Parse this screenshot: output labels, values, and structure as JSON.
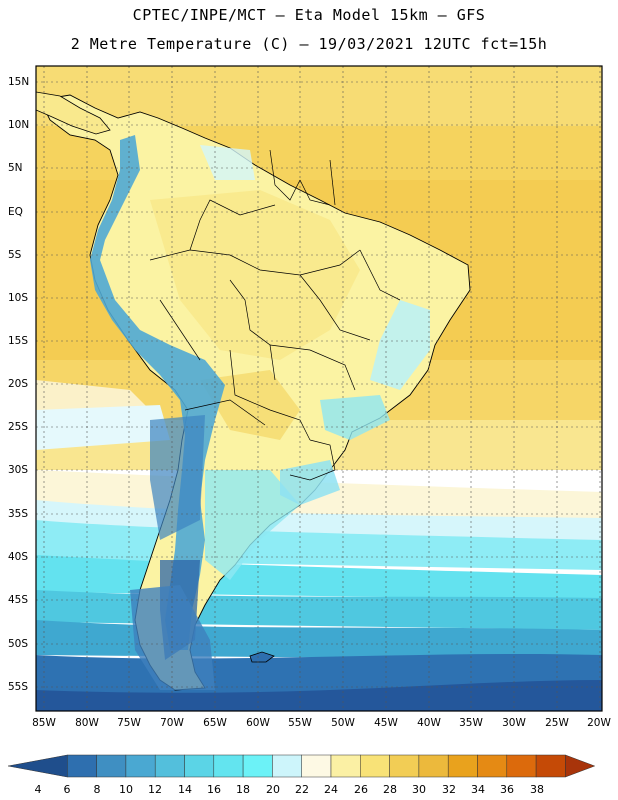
{
  "header": {
    "line1": "CPTEC/INPE/MCT –  Eta Model 15km – GFS",
    "line2": "2 Metre Temperature (C) – 19/03/2021 12UTC fct=15h"
  },
  "map": {
    "region": "South America",
    "lat_labels": [
      "15N",
      "10N",
      "5N",
      "EQ",
      "5S",
      "10S",
      "15S",
      "20S",
      "25S",
      "30S",
      "35S",
      "40S",
      "45S",
      "50S",
      "55S"
    ],
    "lon_labels": [
      "85W",
      "80W",
      "75W",
      "70W",
      "65W",
      "60W",
      "55W",
      "50W",
      "45W",
      "40W",
      "35W",
      "30W",
      "25W",
      "20W"
    ],
    "lat_range": [
      -58,
      17
    ],
    "lon_range": [
      -86,
      -20
    ],
    "grid": true
  },
  "colorbar": {
    "labels": [
      "4",
      "6",
      "8",
      "10",
      "12",
      "14",
      "16",
      "18",
      "20",
      "22",
      "24",
      "26",
      "28",
      "30",
      "32",
      "34",
      "36",
      "38"
    ],
    "colors": [
      "#1f4e8c",
      "#2e6faf",
      "#3f8fc2",
      "#4aa8d2",
      "#53bfdc",
      "#5bd4e6",
      "#63e4ef",
      "#6cf2f7",
      "#cdf5fb",
      "#fdf9e4",
      "#fbf0a4",
      "#f8e277",
      "#f2cd55",
      "#ecb93c",
      "#e9a21d",
      "#e58a14",
      "#dc6a0c",
      "#c54a06",
      "#a8340a"
    ]
  },
  "colors": {
    "ocean_warm": "#f5cf57",
    "ocean_cool": "#4cd4e6",
    "land_warm": "#fbf3a3",
    "andes": "#3d8cc3"
  }
}
